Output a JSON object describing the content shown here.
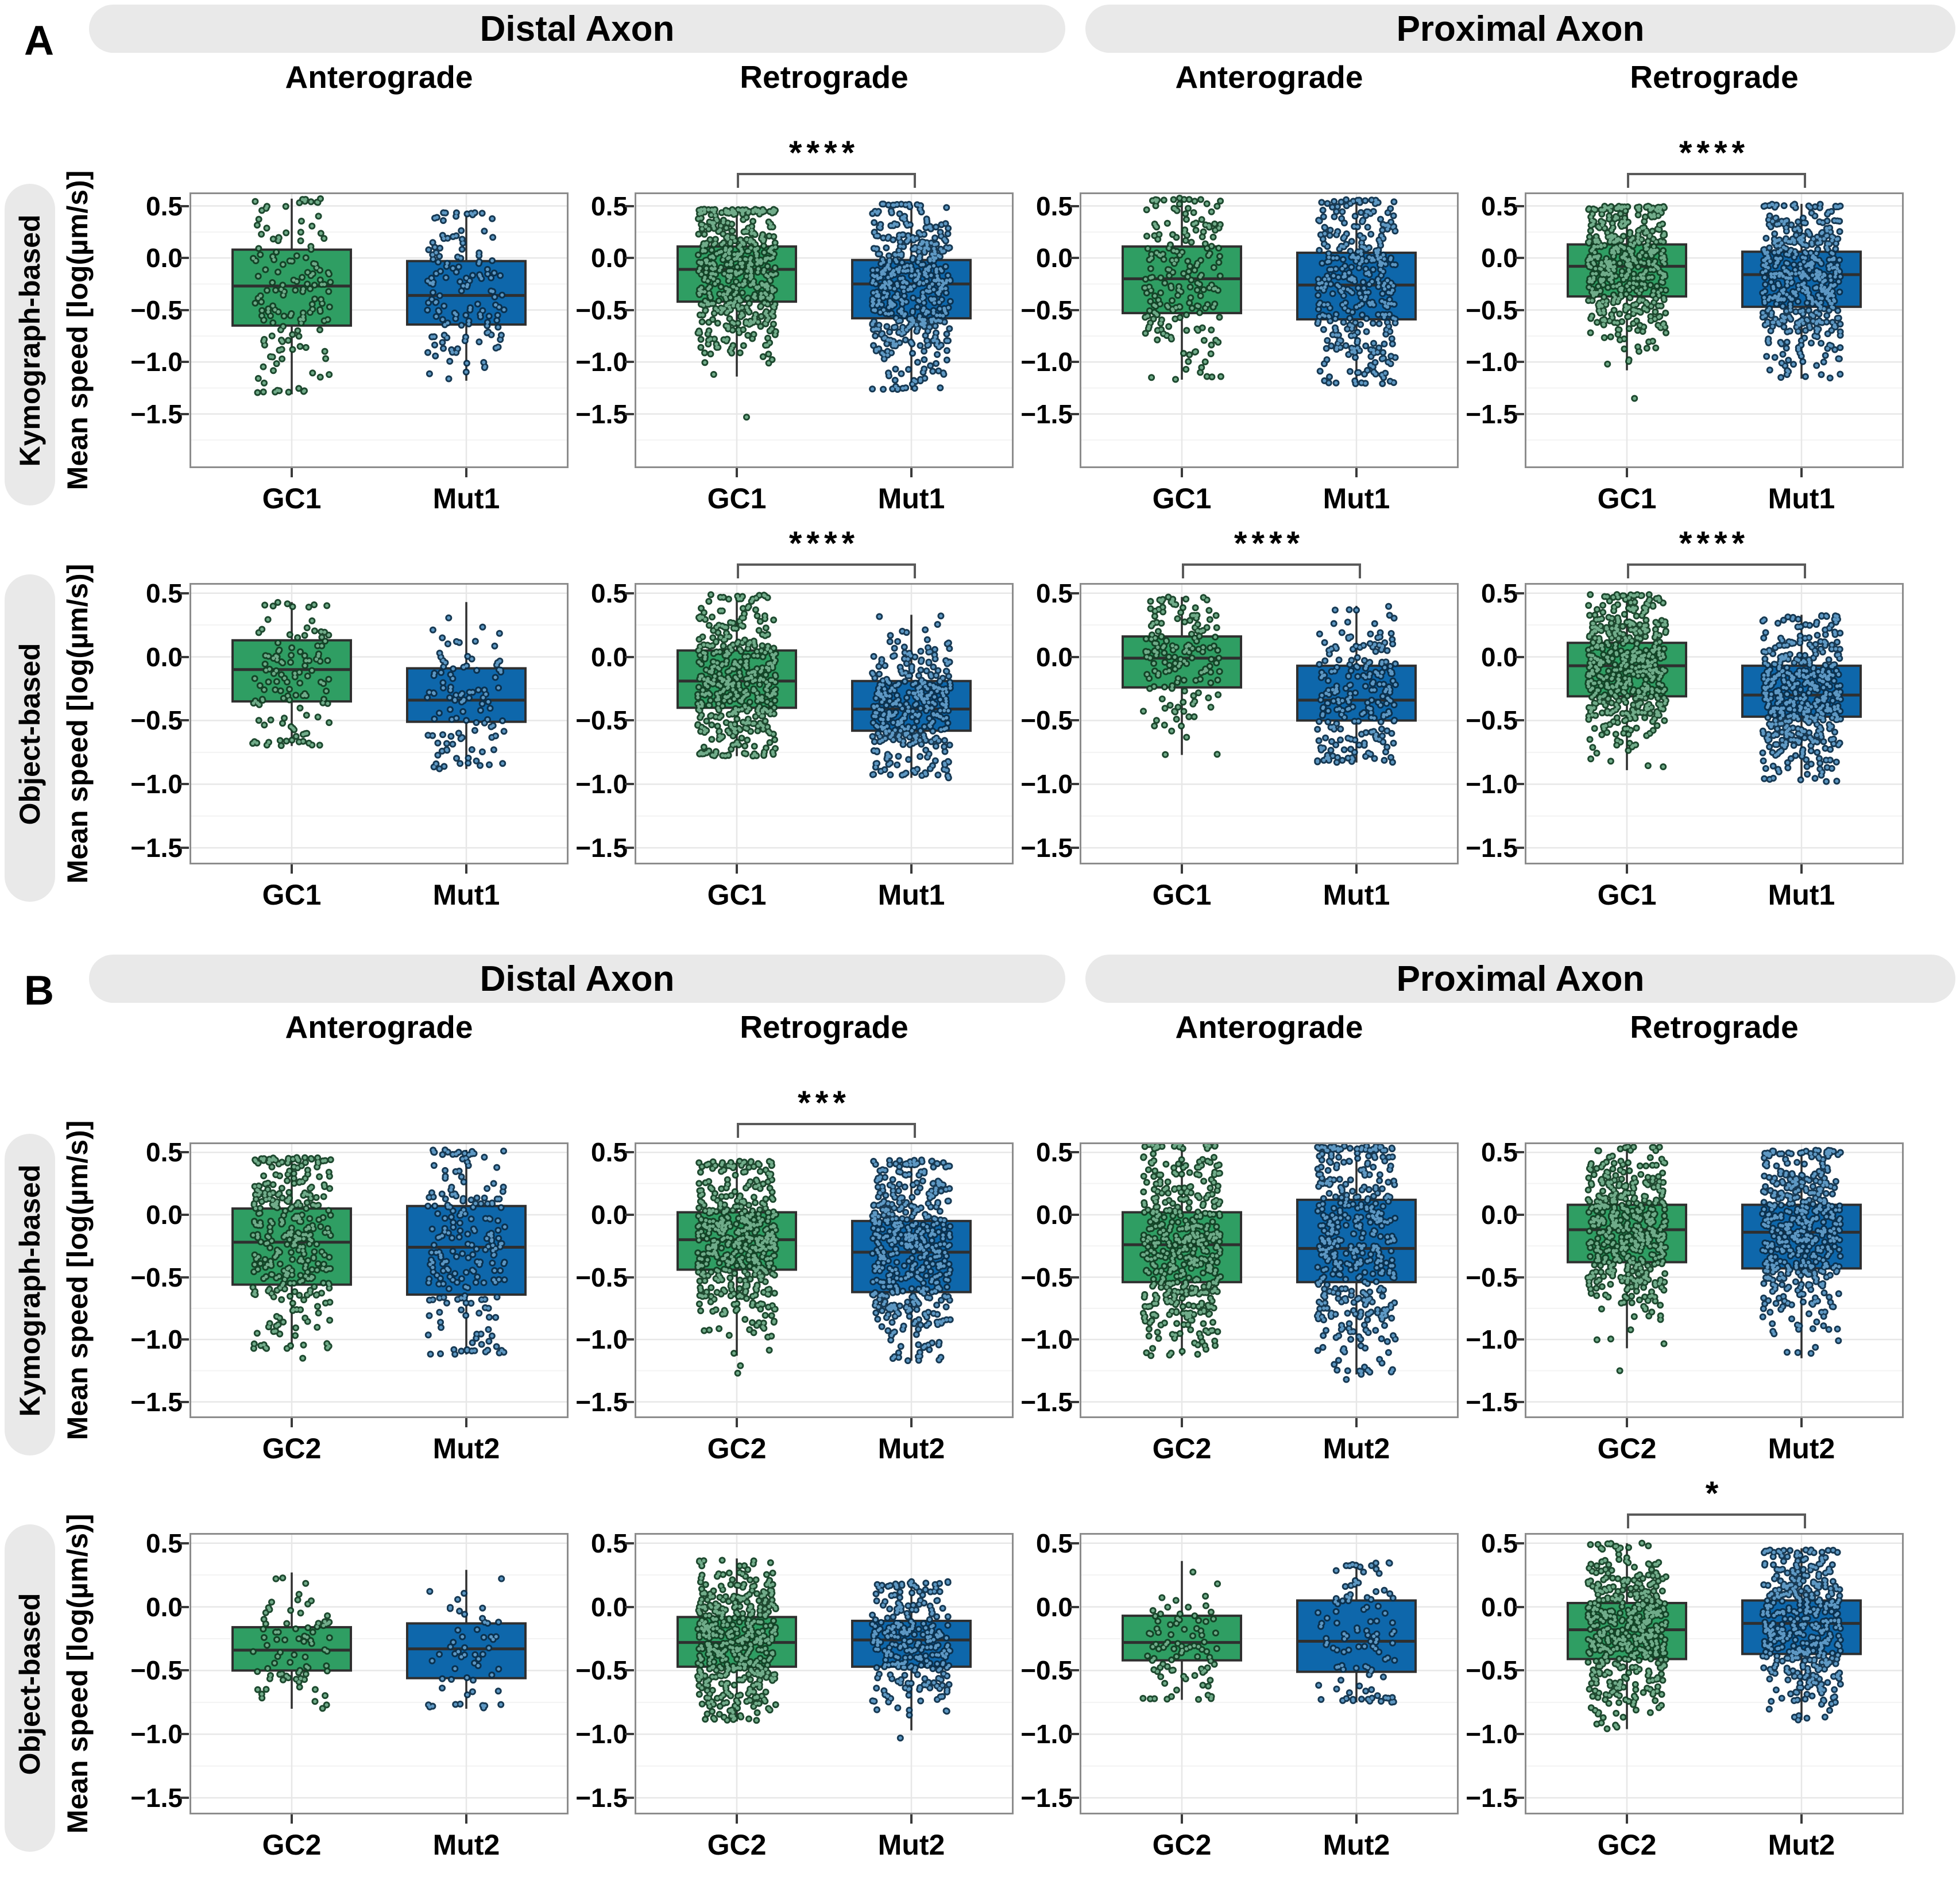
{
  "styles": {
    "background": "#ffffff",
    "header_bg": "#e9e9e9",
    "green_fill": "#2f9e63",
    "blue_fill": "#0e67ab",
    "box_border": "#2f2f2f",
    "green_point_inner": "#7ab795",
    "green_point_outer": "#123f24",
    "blue_point_inner": "#66a3cf",
    "blue_point_outer": "#0b2e4a",
    "grid_major": "#e7e7e7",
    "grid_minor": "#f3f3f3",
    "plot_border": "#8c8c8c",
    "sig_color": "#5a5a5a",
    "text_color": "#000000"
  },
  "chart_data": {
    "type": "boxplot-grid",
    "y_axis_label": "Mean speed [log(µm/s)]",
    "yticks": [
      0.5,
      0,
      -0.5,
      -1,
      -1.5
    ],
    "ytick_labels": [
      "0.5",
      "0.0",
      "−0.5",
      "−1.0",
      "−1.5"
    ],
    "panels": [
      {
        "label": "A",
        "region_headers": [
          "Distal Axon",
          "Proximal Axon"
        ],
        "column_titles": [
          "Anterograde",
          "Retrograde",
          "Anterograde",
          "Retrograde"
        ],
        "categories": [
          "GC1",
          "Mut1"
        ],
        "rows": [
          {
            "label": "Kymograph-based",
            "ylim": [
              -2.02,
              0.63
            ],
            "plots": [
              {
                "region": "Distal Axon",
                "direction": "Anterograde",
                "significance": "",
                "groups": [
                  {
                    "name": "GC1",
                    "color": "green",
                    "q1": -0.65,
                    "median": -0.27,
                    "q3": 0.08,
                    "whisker_low": -1.31,
                    "whisker_high": 0.57,
                    "n_points": 150,
                    "outliers": []
                  },
                  {
                    "name": "Mut1",
                    "color": "blue",
                    "q1": -0.64,
                    "median": -0.36,
                    "q3": -0.03,
                    "whisker_low": -1.18,
                    "whisker_high": 0.44,
                    "n_points": 140,
                    "outliers": []
                  }
                ]
              },
              {
                "region": "Distal Axon",
                "direction": "Retrograde",
                "significance": "****",
                "groups": [
                  {
                    "name": "GC1",
                    "color": "green",
                    "q1": -0.42,
                    "median": -0.11,
                    "q3": 0.11,
                    "whisker_low": -1.14,
                    "whisker_high": 0.47,
                    "n_points": 600,
                    "outliers": [
                      -1.53
                    ]
                  },
                  {
                    "name": "Mut1",
                    "color": "blue",
                    "q1": -0.58,
                    "median": -0.25,
                    "q3": -0.02,
                    "whisker_low": -1.27,
                    "whisker_high": 0.52,
                    "n_points": 800,
                    "outliers": []
                  }
                ]
              },
              {
                "region": "Proximal Axon",
                "direction": "Anterograde",
                "significance": "",
                "groups": [
                  {
                    "name": "GC1",
                    "color": "green",
                    "q1": -0.53,
                    "median": -0.2,
                    "q3": 0.11,
                    "whisker_low": -1.17,
                    "whisker_high": 0.58,
                    "n_points": 200,
                    "outliers": []
                  },
                  {
                    "name": "Mut1",
                    "color": "blue",
                    "q1": -0.59,
                    "median": -0.26,
                    "q3": 0.05,
                    "whisker_low": -1.21,
                    "whisker_high": 0.56,
                    "n_points": 350,
                    "outliers": []
                  }
                ]
              },
              {
                "region": "Proximal Axon",
                "direction": "Retrograde",
                "significance": "****",
                "groups": [
                  {
                    "name": "GC1",
                    "color": "green",
                    "q1": -0.37,
                    "median": -0.08,
                    "q3": 0.13,
                    "whisker_low": -1.08,
                    "whisker_high": 0.5,
                    "n_points": 800,
                    "outliers": [
                      -1.35
                    ]
                  },
                  {
                    "name": "Mut1",
                    "color": "blue",
                    "q1": -0.47,
                    "median": -0.16,
                    "q3": 0.06,
                    "whisker_low": -1.16,
                    "whisker_high": 0.52,
                    "n_points": 1400,
                    "outliers": []
                  }
                ]
              }
            ]
          },
          {
            "label": "Object-based",
            "ylim": [
              -1.63,
              0.58
            ],
            "plots": [
              {
                "region": "Distal Axon",
                "direction": "Anterograde",
                "significance": "",
                "groups": [
                  {
                    "name": "GC1",
                    "color": "green",
                    "q1": -0.35,
                    "median": -0.1,
                    "q3": 0.13,
                    "whisker_low": -0.7,
                    "whisker_high": 0.43,
                    "n_points": 120,
                    "outliers": []
                  },
                  {
                    "name": "Mut1",
                    "color": "blue",
                    "q1": -0.51,
                    "median": -0.34,
                    "q3": -0.09,
                    "whisker_low": -0.88,
                    "whisker_high": 0.43,
                    "n_points": 110,
                    "outliers": []
                  }
                ]
              },
              {
                "region": "Distal Axon",
                "direction": "Retrograde",
                "significance": "****",
                "groups": [
                  {
                    "name": "GC1",
                    "color": "green",
                    "q1": -0.4,
                    "median": -0.19,
                    "q3": 0.05,
                    "whisker_low": -0.78,
                    "whisker_high": 0.49,
                    "n_points": 450,
                    "outliers": []
                  },
                  {
                    "name": "Mut1",
                    "color": "blue",
                    "q1": -0.58,
                    "median": -0.41,
                    "q3": -0.19,
                    "whisker_low": -0.95,
                    "whisker_high": 0.33,
                    "n_points": 350,
                    "outliers": []
                  }
                ]
              },
              {
                "region": "Proximal Axon",
                "direction": "Anterograde",
                "significance": "****",
                "groups": [
                  {
                    "name": "GC1",
                    "color": "green",
                    "q1": -0.24,
                    "median": -0.01,
                    "q3": 0.16,
                    "whisker_low": -0.77,
                    "whisker_high": 0.47,
                    "n_points": 160,
                    "outliers": []
                  },
                  {
                    "name": "Mut1",
                    "color": "blue",
                    "q1": -0.5,
                    "median": -0.34,
                    "q3": -0.07,
                    "whisker_low": -0.83,
                    "whisker_high": 0.4,
                    "n_points": 230,
                    "outliers": []
                  }
                ]
              },
              {
                "region": "Proximal Axon",
                "direction": "Retrograde",
                "significance": "****",
                "groups": [
                  {
                    "name": "GC1",
                    "color": "green",
                    "q1": -0.31,
                    "median": -0.07,
                    "q3": 0.11,
                    "whisker_low": -0.89,
                    "whisker_high": 0.49,
                    "n_points": 500,
                    "outliers": []
                  },
                  {
                    "name": "Mut1",
                    "color": "blue",
                    "q1": -0.47,
                    "median": -0.3,
                    "q3": -0.07,
                    "whisker_low": -0.98,
                    "whisker_high": 0.33,
                    "n_points": 900,
                    "outliers": []
                  }
                ]
              }
            ]
          }
        ]
      },
      {
        "label": "B",
        "region_headers": [
          "Distal Axon",
          "Proximal Axon"
        ],
        "column_titles": [
          "Anterograde",
          "Retrograde",
          "Anterograde",
          "Retrograde"
        ],
        "categories": [
          "GC2",
          "Mut2"
        ],
        "rows": [
          {
            "label": "Kymograph-based",
            "ylim": [
              -1.63,
              0.58
            ],
            "plots": [
              {
                "region": "Distal Axon",
                "direction": "Anterograde",
                "significance": "",
                "groups": [
                  {
                    "name": "GC2",
                    "color": "green",
                    "q1": -0.56,
                    "median": -0.22,
                    "q3": 0.05,
                    "whisker_low": -1.08,
                    "whisker_high": 0.46,
                    "n_points": 350,
                    "outliers": [
                      -1.15
                    ]
                  },
                  {
                    "name": "Mut2",
                    "color": "blue",
                    "q1": -0.64,
                    "median": -0.26,
                    "q3": 0.07,
                    "whisker_low": -1.12,
                    "whisker_high": 0.52,
                    "n_points": 220,
                    "outliers": []
                  }
                ]
              },
              {
                "region": "Distal Axon",
                "direction": "Retrograde",
                "significance": "***",
                "groups": [
                  {
                    "name": "GC2",
                    "color": "green",
                    "q1": -0.44,
                    "median": -0.2,
                    "q3": 0.02,
                    "whisker_low": -1.13,
                    "whisker_high": 0.43,
                    "n_points": 2000,
                    "outliers": [
                      -1.21,
                      -1.27
                    ]
                  },
                  {
                    "name": "Mut2",
                    "color": "blue",
                    "q1": -0.62,
                    "median": -0.3,
                    "q3": -0.05,
                    "whisker_low": -1.17,
                    "whisker_high": 0.44,
                    "n_points": 700,
                    "outliers": []
                  }
                ]
              },
              {
                "region": "Proximal Axon",
                "direction": "Anterograde",
                "significance": "",
                "groups": [
                  {
                    "name": "GC2",
                    "color": "green",
                    "q1": -0.54,
                    "median": -0.24,
                    "q3": 0.02,
                    "whisker_low": -1.13,
                    "whisker_high": 0.57,
                    "n_points": 600,
                    "outliers": []
                  },
                  {
                    "name": "Mut2",
                    "color": "blue",
                    "q1": -0.54,
                    "median": -0.27,
                    "q3": 0.12,
                    "whisker_low": -1.28,
                    "whisker_high": 0.55,
                    "n_points": 450,
                    "outliers": [
                      -1.32
                    ]
                  }
                ]
              },
              {
                "region": "Proximal Axon",
                "direction": "Retrograde",
                "significance": "",
                "groups": [
                  {
                    "name": "GC2",
                    "color": "green",
                    "q1": -0.38,
                    "median": -0.12,
                    "q3": 0.08,
                    "whisker_low": -1.07,
                    "whisker_high": 0.55,
                    "n_points": 2500,
                    "outliers": [
                      -1.25
                    ]
                  },
                  {
                    "name": "Mut2",
                    "color": "blue",
                    "q1": -0.43,
                    "median": -0.14,
                    "q3": 0.08,
                    "whisker_low": -1.15,
                    "whisker_high": 0.52,
                    "n_points": 1000,
                    "outliers": []
                  }
                ]
              }
            ]
          },
          {
            "label": "Object-based",
            "ylim": [
              -1.63,
              0.58
            ],
            "plots": [
              {
                "region": "Distal Axon",
                "direction": "Anterograde",
                "significance": "",
                "groups": [
                  {
                    "name": "GC2",
                    "color": "green",
                    "q1": -0.5,
                    "median": -0.34,
                    "q3": -0.16,
                    "whisker_low": -0.8,
                    "whisker_high": 0.27,
                    "n_points": 80,
                    "outliers": []
                  },
                  {
                    "name": "Mut2",
                    "color": "blue",
                    "q1": -0.56,
                    "median": -0.33,
                    "q3": -0.13,
                    "whisker_low": -0.8,
                    "whisker_high": 0.29,
                    "n_points": 55,
                    "outliers": []
                  }
                ]
              },
              {
                "region": "Distal Axon",
                "direction": "Retrograde",
                "significance": "",
                "groups": [
                  {
                    "name": "GC2",
                    "color": "green",
                    "q1": -0.47,
                    "median": -0.28,
                    "q3": -0.08,
                    "whisker_low": -0.9,
                    "whisker_high": 0.38,
                    "n_points": 700,
                    "outliers": []
                  },
                  {
                    "name": "Mut2",
                    "color": "blue",
                    "q1": -0.47,
                    "median": -0.26,
                    "q3": -0.11,
                    "whisker_low": -0.97,
                    "whisker_high": 0.2,
                    "n_points": 280,
                    "outliers": [
                      -1.03
                    ]
                  }
                ]
              },
              {
                "region": "Proximal Axon",
                "direction": "Anterograde",
                "significance": "",
                "groups": [
                  {
                    "name": "GC2",
                    "color": "green",
                    "q1": -0.42,
                    "median": -0.28,
                    "q3": -0.07,
                    "whisker_low": -0.73,
                    "whisker_high": 0.36,
                    "n_points": 90,
                    "outliers": []
                  },
                  {
                    "name": "Mut2",
                    "color": "blue",
                    "q1": -0.51,
                    "median": -0.27,
                    "q3": 0.05,
                    "whisker_low": -0.75,
                    "whisker_high": 0.35,
                    "n_points": 110,
                    "outliers": []
                  }
                ]
              },
              {
                "region": "Proximal Axon",
                "direction": "Retrograde",
                "significance": "*",
                "groups": [
                  {
                    "name": "GC2",
                    "color": "green",
                    "q1": -0.41,
                    "median": -0.18,
                    "q3": 0.03,
                    "whisker_low": -0.96,
                    "whisker_high": 0.5,
                    "n_points": 500,
                    "outliers": []
                  },
                  {
                    "name": "Mut2",
                    "color": "blue",
                    "q1": -0.37,
                    "median": -0.13,
                    "q3": 0.05,
                    "whisker_low": -0.89,
                    "whisker_high": 0.46,
                    "n_points": 450,
                    "outliers": []
                  }
                ]
              }
            ]
          }
        ]
      }
    ]
  }
}
